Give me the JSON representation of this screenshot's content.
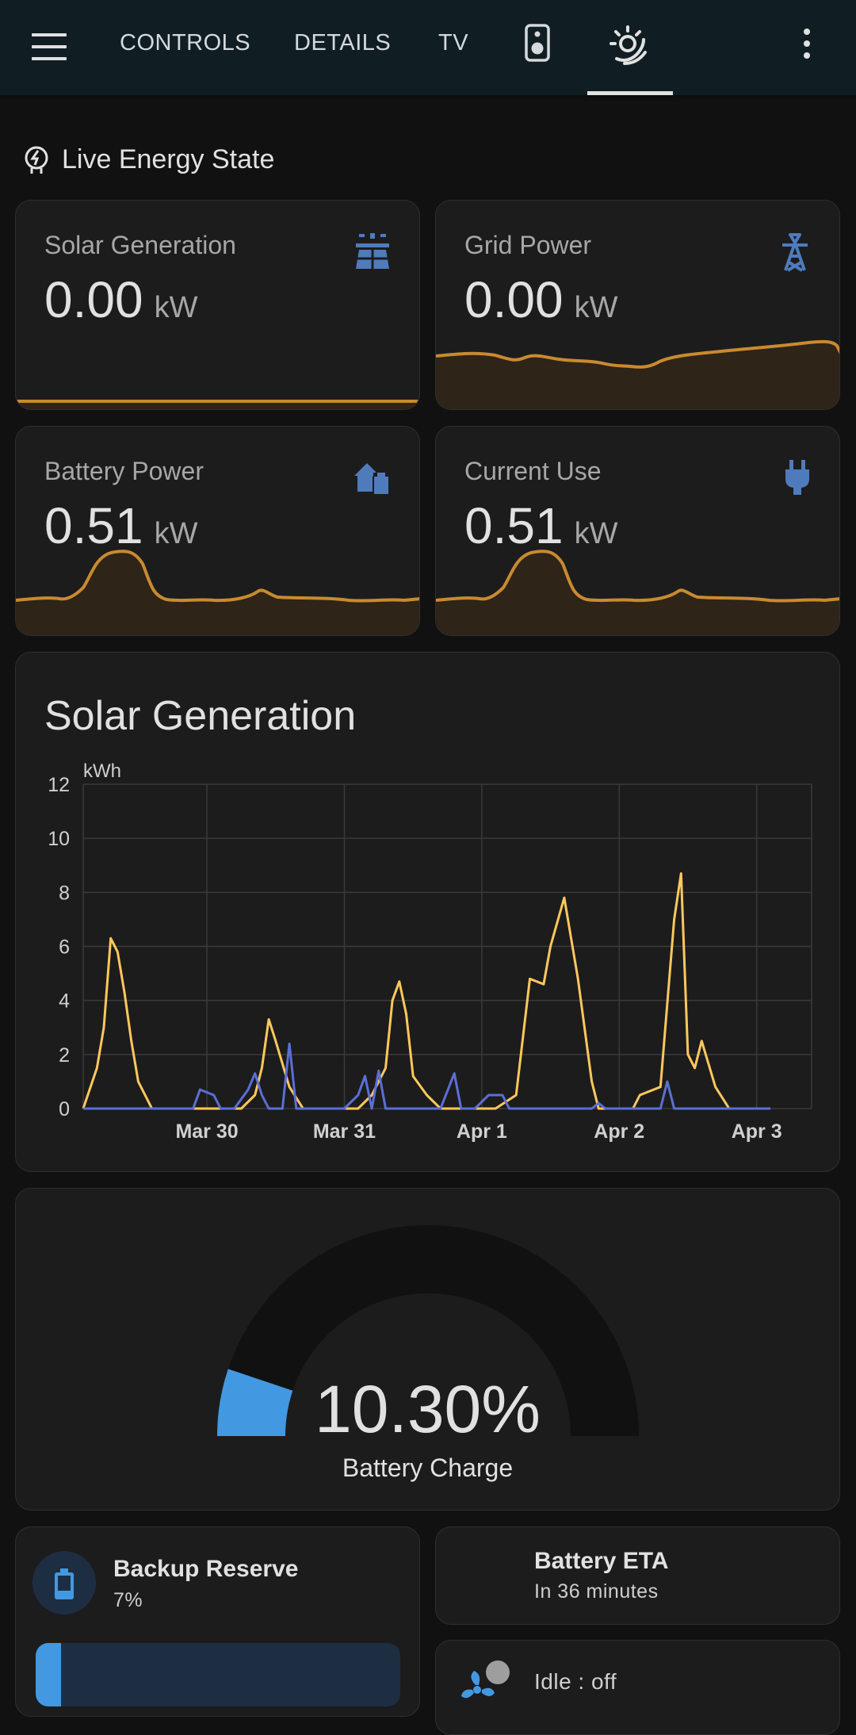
{
  "header": {
    "tabs": [
      {
        "label": "CONTROLS"
      },
      {
        "label": "DETAILS"
      },
      {
        "label": "TV"
      },
      {
        "icon": "speaker-icon"
      },
      {
        "icon": "solar-weather-icon",
        "active": true
      }
    ],
    "menu_icon": "hamburger-menu-icon",
    "overflow_icon": "more-vertical-icon"
  },
  "section": {
    "title": "Live Energy State",
    "icon": "transmission-tower-icon"
  },
  "sensors": [
    {
      "name": "Solar Generation",
      "value": "0.00",
      "unit": "kW",
      "icon": "solar-panel-icon"
    },
    {
      "name": "Grid Power",
      "value": "0.00",
      "unit": "kW",
      "icon": "transmission-tower-icon"
    },
    {
      "name": "Battery Power",
      "value": "0.51",
      "unit": "kW",
      "icon": "home-battery-icon"
    },
    {
      "name": "Current Use",
      "value": "0.51",
      "unit": "kW",
      "icon": "power-plug-icon"
    }
  ],
  "solar_chart": {
    "title": "Solar Generation",
    "unit": "kWh"
  },
  "chart_data": {
    "type": "line",
    "title": "Solar Generation",
    "ylabel": "kWh",
    "ylim": [
      0,
      12
    ],
    "yticks": [
      "0",
      "2",
      "4",
      "6",
      "8",
      "10",
      "12"
    ],
    "xticks": [
      "Mar 30",
      "Mar 31",
      "Apr 1",
      "Apr 2",
      "Apr 3"
    ],
    "grid": true,
    "x_unit": "days since first visible sample",
    "series": [
      {
        "color": "#ffc85c",
        "points": [
          [
            0,
            0
          ],
          [
            0.1,
            1.5
          ],
          [
            0.15,
            3
          ],
          [
            0.2,
            6.3
          ],
          [
            0.25,
            5.8
          ],
          [
            0.3,
            4.3
          ],
          [
            0.35,
            2.5
          ],
          [
            0.4,
            1
          ],
          [
            0.5,
            0
          ],
          [
            1,
            0
          ],
          [
            1.15,
            0
          ],
          [
            1.25,
            0.5
          ],
          [
            1.3,
            1.5
          ],
          [
            1.35,
            3.3
          ],
          [
            1.4,
            2.5
          ],
          [
            1.5,
            0.8
          ],
          [
            1.6,
            0
          ],
          [
            2,
            0
          ],
          [
            2.1,
            0.5
          ],
          [
            2.2,
            1.5
          ],
          [
            2.25,
            4
          ],
          [
            2.3,
            4.7
          ],
          [
            2.35,
            3.5
          ],
          [
            2.4,
            1.2
          ],
          [
            2.5,
            0.5
          ],
          [
            2.6,
            0
          ],
          [
            3,
            0
          ],
          [
            3.15,
            0.5
          ],
          [
            3.25,
            4.8
          ],
          [
            3.35,
            4.6
          ],
          [
            3.4,
            6
          ],
          [
            3.5,
            7.8
          ],
          [
            3.6,
            4.8
          ],
          [
            3.7,
            1
          ],
          [
            3.75,
            0
          ],
          [
            4,
            0
          ],
          [
            4.05,
            0.5
          ],
          [
            4.2,
            0.8
          ],
          [
            4.3,
            7
          ],
          [
            4.35,
            8.7
          ],
          [
            4.4,
            2
          ],
          [
            4.45,
            1.5
          ],
          [
            4.5,
            2.5
          ],
          [
            4.6,
            0.8
          ],
          [
            4.7,
            0
          ],
          [
            5,
            0
          ]
        ]
      },
      {
        "color": "#5a6fd6",
        "points": [
          [
            0,
            0
          ],
          [
            0.8,
            0
          ],
          [
            0.85,
            0.7
          ],
          [
            0.95,
            0.5
          ],
          [
            1,
            0
          ],
          [
            1.1,
            0
          ],
          [
            1.2,
            0.7
          ],
          [
            1.25,
            1.3
          ],
          [
            1.3,
            0.5
          ],
          [
            1.35,
            0
          ],
          [
            1.45,
            0
          ],
          [
            1.5,
            2.4
          ],
          [
            1.55,
            0
          ],
          [
            1.9,
            0
          ],
          [
            2,
            0.5
          ],
          [
            2.05,
            1.2
          ],
          [
            2.1,
            0
          ],
          [
            2.15,
            1.4
          ],
          [
            2.2,
            0
          ],
          [
            2.6,
            0
          ],
          [
            2.7,
            1.3
          ],
          [
            2.75,
            0
          ],
          [
            2.85,
            0
          ],
          [
            2.95,
            0.5
          ],
          [
            3.05,
            0.5
          ],
          [
            3.1,
            0
          ],
          [
            3.7,
            0
          ],
          [
            3.75,
            0.2
          ],
          [
            3.8,
            0
          ],
          [
            4.2,
            0
          ],
          [
            4.25,
            1
          ],
          [
            4.3,
            0
          ],
          [
            5,
            0
          ]
        ]
      }
    ]
  },
  "gauge": {
    "value": "10.30%",
    "label": "Battery Charge",
    "fraction": 0.103,
    "fill_color": "#4299e1"
  },
  "tiles": {
    "backup_reserve": {
      "name": "Backup Reserve",
      "state": "7%",
      "icon": "battery-icon",
      "fraction": 0.07
    },
    "battery_eta": {
      "name": "Battery ETA",
      "state": "In 36 minutes"
    },
    "fan": {
      "state": "Idle : off",
      "icon": "fan-icon"
    }
  }
}
